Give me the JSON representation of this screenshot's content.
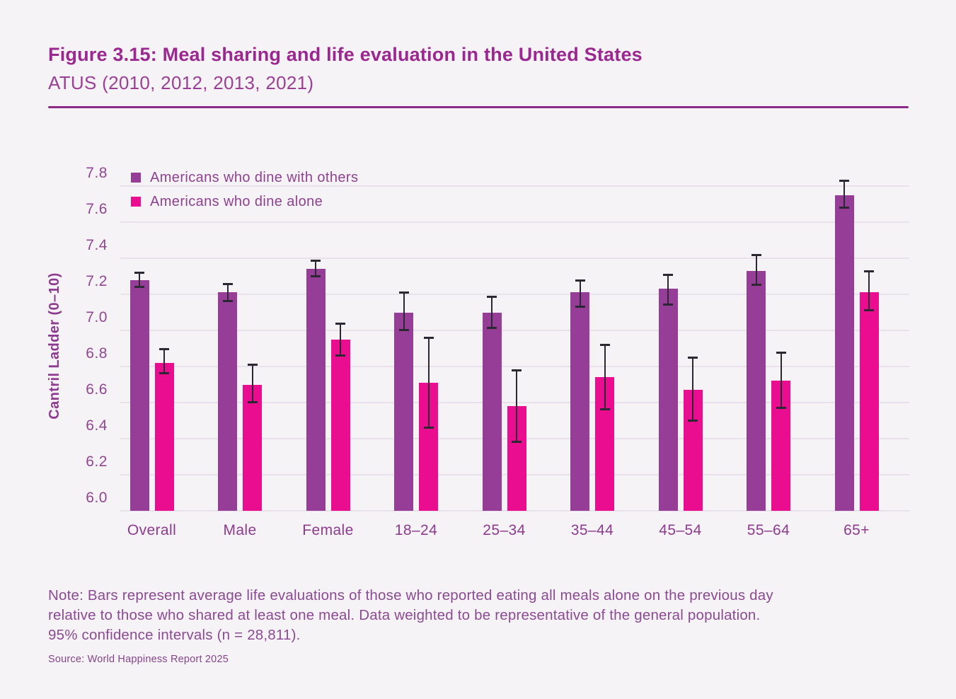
{
  "header": {
    "title": "Figure 3.15: Meal sharing and life evaluation in the United States",
    "subtitle": "ATUS (2010, 2012, 2013, 2021)"
  },
  "chart_data": {
    "type": "bar",
    "title": "Figure 3.15: Meal sharing and life evaluation in the United States",
    "subtitle": "ATUS (2010, 2012, 2013, 2021)",
    "xlabel": "",
    "ylabel": "Cantril Ladder (0–10)",
    "ylim": [
      6.0,
      7.8
    ],
    "yticks": [
      "7.8",
      "7.6",
      "7.4",
      "7.2",
      "7.0",
      "6.8",
      "6.6",
      "6.4",
      "6.2",
      "6.0"
    ],
    "grid": "horizontal",
    "legend_position": "top-left-inside",
    "error_bars": "95% confidence intervals",
    "categories": [
      "Overall",
      "Male",
      "Female",
      "18–24",
      "25–34",
      "35–44",
      "45–54",
      "55–64",
      "65+"
    ],
    "series": [
      {
        "name": "Americans who dine with others",
        "color": "#963d97",
        "values": [
          7.28,
          7.21,
          7.34,
          7.1,
          7.1,
          7.21,
          7.23,
          7.33,
          7.75
        ],
        "ci_low": [
          7.24,
          7.16,
          7.3,
          7.0,
          7.01,
          7.13,
          7.14,
          7.25,
          7.68
        ],
        "ci_high": [
          7.32,
          7.26,
          7.39,
          7.21,
          7.19,
          7.28,
          7.31,
          7.42,
          7.83
        ]
      },
      {
        "name": "Americans who dine alone",
        "color": "#ea0d90",
        "values": [
          6.82,
          6.7,
          6.95,
          6.71,
          6.58,
          6.74,
          6.67,
          6.72,
          7.21
        ],
        "ci_low": [
          6.76,
          6.6,
          6.86,
          6.46,
          6.38,
          6.56,
          6.5,
          6.57,
          7.11
        ],
        "ci_high": [
          6.9,
          6.81,
          7.04,
          6.96,
          6.78,
          6.92,
          6.85,
          6.88,
          7.33
        ]
      }
    ]
  },
  "footer": {
    "note_lines": [
      "Note: Bars represent average life evaluations of those who reported eating all meals alone on the previous day",
      "relative to those who shared at least one meal. Data weighted to be representative of the general population.",
      "95% confidence intervals (n = 28,811)."
    ],
    "source": "Source: World Happiness Report 2025"
  },
  "colors": {
    "background": "#f6f3f6",
    "bar_purple": "#963d97",
    "bar_pink": "#ea0d90",
    "title_text": "#9b2790",
    "divider": "#8c2a8a",
    "axis_text": "#8e4191",
    "gridline": "#e8e0ea",
    "error_bar": "#2b2834"
  }
}
